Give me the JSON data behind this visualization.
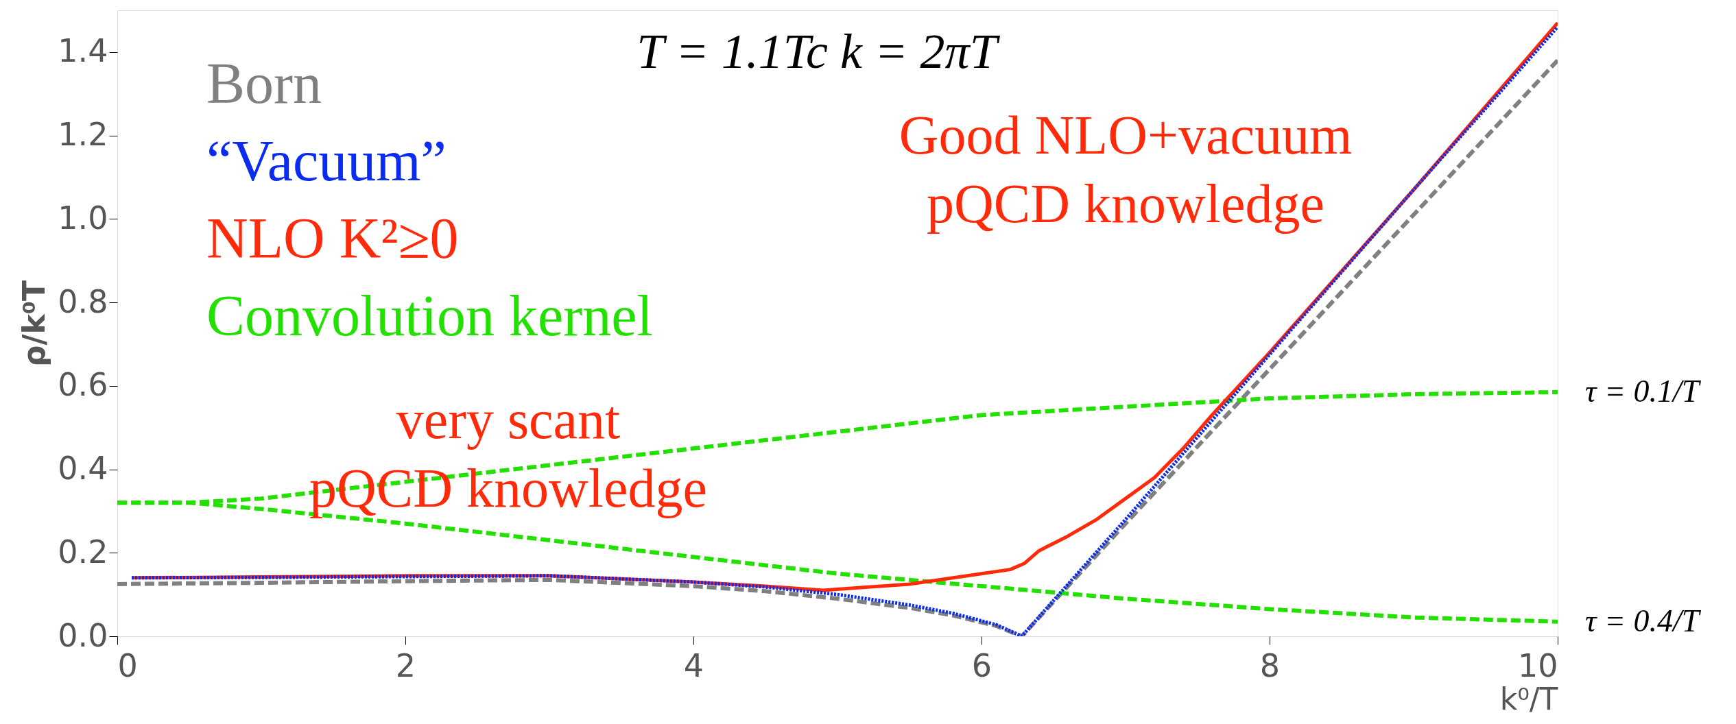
{
  "chart_data": {
    "type": "line",
    "title": "T = 1.1Tc   k = 2πT",
    "xlabel": "k⁰/T",
    "ylabel": "ρ/k⁰T",
    "xlim": [
      0,
      10
    ],
    "ylim": [
      0,
      1.5
    ],
    "xticks": [
      0,
      2,
      4,
      6,
      8,
      10
    ],
    "yticks": [
      {
        "value": 0,
        "label": "0.0"
      },
      0.2,
      0.4,
      0.6,
      0.8,
      {
        "value": 1,
        "label": "1.0"
      },
      1.2,
      1.4
    ],
    "grid": false,
    "legend": "top left",
    "series": [
      {
        "name": "Born",
        "color": "#808080",
        "line_style": "dashed",
        "x": [
          0,
          1,
          2,
          3,
          4,
          4.5,
          5,
          5.5,
          5.8,
          6.1,
          6.28,
          7,
          8,
          9,
          10
        ],
        "values": [
          0.125,
          0.128,
          0.132,
          0.135,
          0.12,
          0.108,
          0.09,
          0.068,
          0.05,
          0.025,
          0.0,
          0.27,
          0.64,
          1.01,
          1.38
        ]
      },
      {
        "name": "“Vacuum”",
        "color": "#0a2cf0",
        "line_style": "dotted",
        "x": [
          0.1,
          1,
          2,
          3,
          4,
          4.5,
          5,
          5.5,
          5.8,
          6.1,
          6.28,
          7,
          8,
          9,
          10
        ],
        "values": [
          0.14,
          0.141,
          0.143,
          0.145,
          0.13,
          0.118,
          0.1,
          0.075,
          0.055,
          0.028,
          0.0,
          0.28,
          0.675,
          1.07,
          1.46
        ]
      },
      {
        "name": "NLO K²≥0",
        "color": "#ff2a0a",
        "line_style": "solid",
        "x": [
          0.1,
          1,
          2,
          3,
          4,
          4.5,
          4.9,
          5.5,
          6,
          6.2,
          6.3,
          6.4,
          6.6,
          6.8,
          7,
          7.2,
          7.4,
          7.6,
          8,
          9,
          10
        ],
        "values": [
          0.14,
          0.142,
          0.145,
          0.145,
          0.13,
          0.12,
          0.11,
          0.125,
          0.15,
          0.16,
          0.175,
          0.205,
          0.24,
          0.28,
          0.33,
          0.38,
          0.45,
          0.53,
          0.68,
          1.07,
          1.47
        ]
      },
      {
        "name": "Convolution kernel",
        "color": "#22e000",
        "line_style": "dashed",
        "x": [
          0,
          0.5,
          1,
          2,
          3,
          4,
          5,
          6,
          7,
          8,
          9,
          10
        ],
        "values": [
          0.32,
          0.32,
          0.33,
          0.37,
          0.41,
          0.45,
          0.49,
          0.53,
          0.55,
          0.57,
          0.58,
          0.585
        ]
      },
      {
        "color": "#22e000",
        "line_style": "dashed",
        "x": [
          0,
          0.5,
          1,
          2,
          3,
          4,
          5,
          6,
          7,
          8,
          9,
          10
        ],
        "values": [
          0.32,
          0.32,
          0.305,
          0.27,
          0.23,
          0.19,
          0.15,
          0.12,
          0.09,
          0.065,
          0.045,
          0.035
        ]
      }
    ],
    "annotations": [
      {
        "text": "τ = 0.1/T",
        "x": 10,
        "y": 0.585
      },
      {
        "text": "τ = 0.4/T",
        "x": 10,
        "y": 0.035
      },
      "Good NLO+vacuum\npQCD knowledge",
      "very scant\npQCD knowledge"
    ]
  }
}
